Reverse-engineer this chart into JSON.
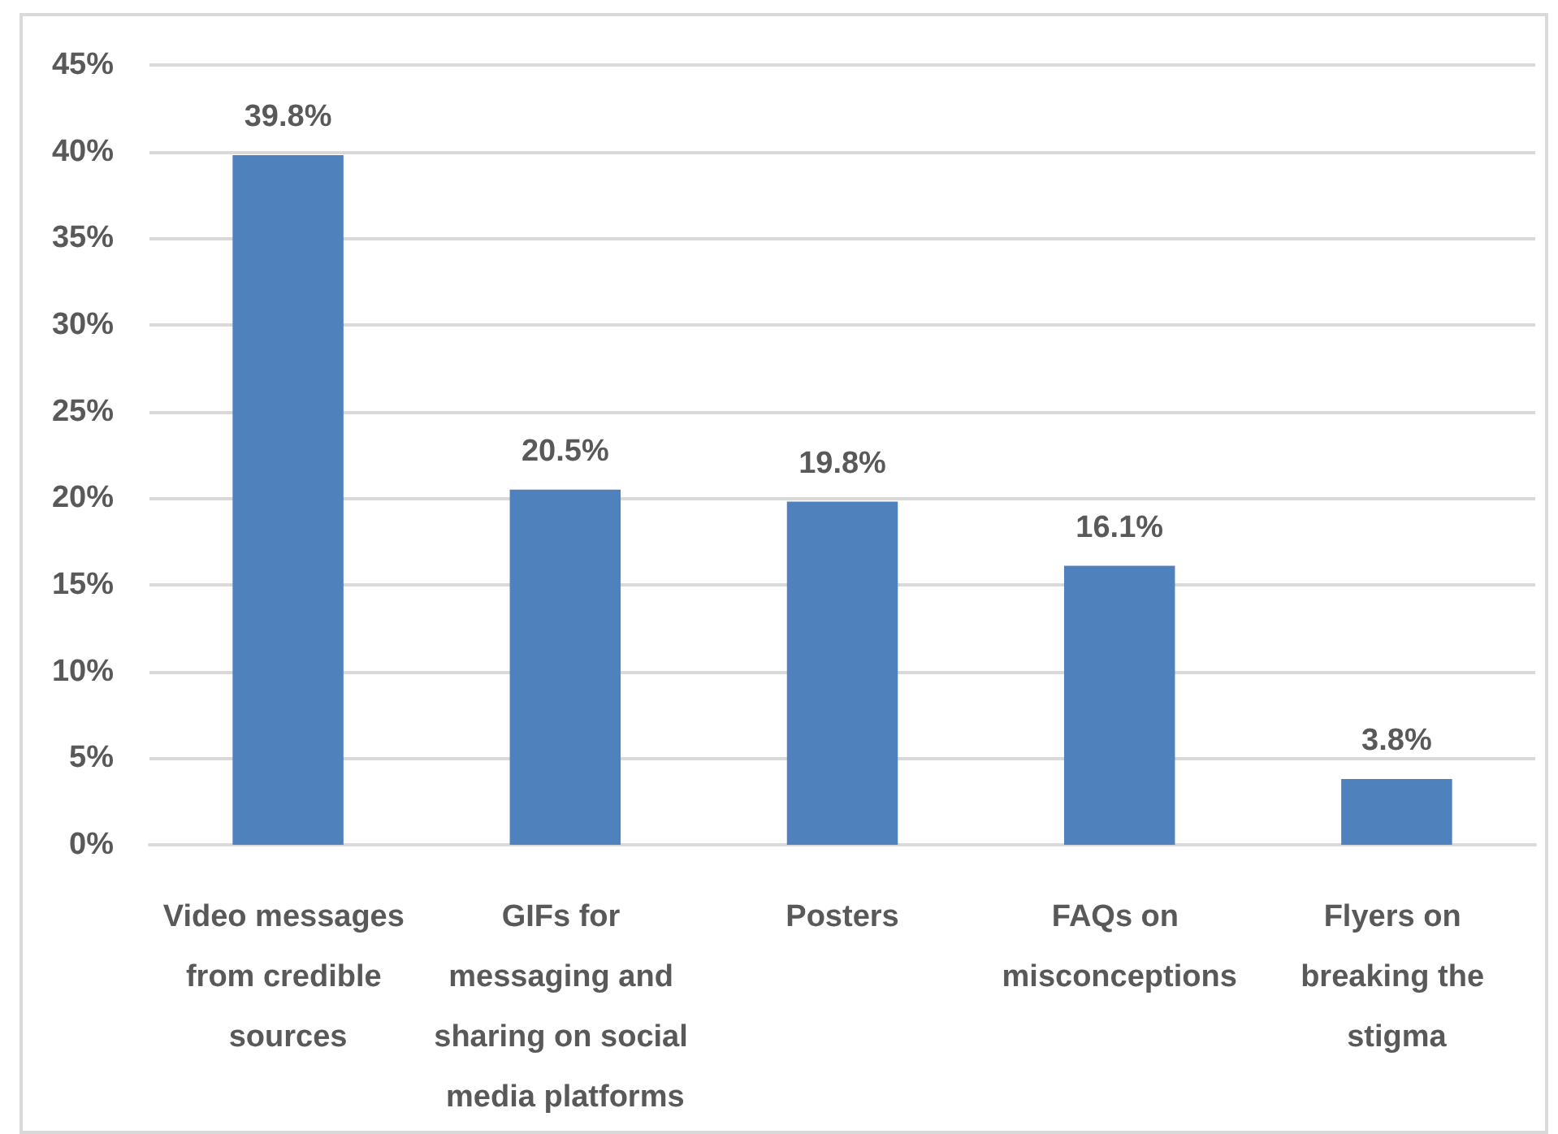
{
  "chart_data": {
    "type": "bar",
    "categories": [
      "Video messages from credible sources",
      "GIFs for messaging and sharing on social media platforms",
      "Posters",
      "FAQs on misconceptions",
      "Flyers on breaking the stigma"
    ],
    "values": [
      39.8,
      20.5,
      19.8,
      16.1,
      3.8
    ],
    "value_labels": [
      "39.8%",
      "20.5%",
      "19.8%",
      "16.1%",
      "3.8%"
    ],
    "color": "#4f81bd",
    "ylim": [
      0,
      45
    ],
    "yticks": [
      {
        "value": 0,
        "label": "0%"
      },
      {
        "value": 5,
        "label": "5%"
      },
      {
        "value": 10,
        "label": "10%"
      },
      {
        "value": 15,
        "label": "15%"
      },
      {
        "value": 20,
        "label": "20%"
      },
      {
        "value": 25,
        "label": "25%"
      },
      {
        "value": 30,
        "label": "30%"
      },
      {
        "value": 35,
        "label": "35%"
      },
      {
        "value": 40,
        "label": "40%"
      },
      {
        "value": 45,
        "label": "45%"
      }
    ],
    "grid": "y"
  }
}
